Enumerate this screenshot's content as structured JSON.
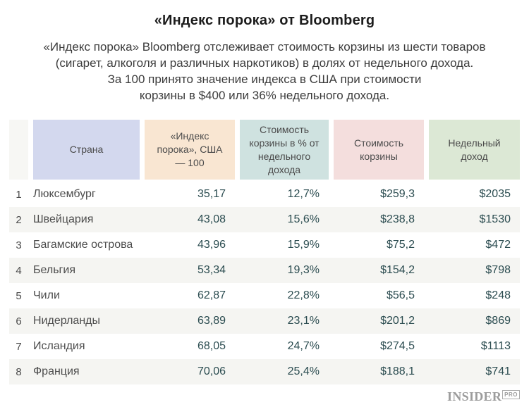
{
  "header": {
    "title": "«Индекс порока» от Bloomberg",
    "subtitle_lines": [
      "«Индекс порока» Bloomberg отслеживает стоимость корзины из шести товаров",
      "(сигарет, алкоголя и различных наркотиков) в долях от недельного дохода.",
      "За 100 принято значение индекса в США при стоимости",
      "корзины в $400 или 36% недельного дохода."
    ]
  },
  "chart_data": {
    "type": "table",
    "title": "«Индекс порока» от Bloomberg",
    "columns": [
      {
        "id": "rank",
        "label": "",
        "header_bg": "#f7f7f4"
      },
      {
        "id": "country",
        "label": "Страна",
        "header_bg": "#d3d8ee"
      },
      {
        "id": "index",
        "label": "«Индекс порока», США — 100",
        "header_bg": "#f9e6d2"
      },
      {
        "id": "pct",
        "label": "Стоимость корзины в % от недельного дохода",
        "header_bg": "#cfe2e0"
      },
      {
        "id": "basket_cost",
        "label": "Стоимость корзины",
        "header_bg": "#f4dedd"
      },
      {
        "id": "weekly_income",
        "label": "Недельный доход",
        "header_bg": "#dce8d5"
      }
    ],
    "rows": [
      {
        "rank": "1",
        "country": "Люксембург",
        "index": "35,17",
        "pct": "12,7%",
        "basket_cost": "$259,3",
        "weekly_income": "$2035"
      },
      {
        "rank": "2",
        "country": "Швейцария",
        "index": "43,08",
        "pct": "15,6%",
        "basket_cost": "$238,8",
        "weekly_income": "$1530"
      },
      {
        "rank": "3",
        "country": "Багамские острова",
        "index": "43,96",
        "pct": "15,9%",
        "basket_cost": "$75,2",
        "weekly_income": "$472"
      },
      {
        "rank": "4",
        "country": "Бельгия",
        "index": "53,34",
        "pct": "19,3%",
        "basket_cost": "$154,2",
        "weekly_income": "$798"
      },
      {
        "rank": "5",
        "country": "Чили",
        "index": "62,87",
        "pct": "22,8%",
        "basket_cost": "$56,5",
        "weekly_income": "$248"
      },
      {
        "rank": "6",
        "country": "Нидерланды",
        "index": "63,89",
        "pct": "23,1%",
        "basket_cost": "$201,2",
        "weekly_income": "$869"
      },
      {
        "rank": "7",
        "country": "Исландия",
        "index": "68,05",
        "pct": "24,7%",
        "basket_cost": "$274,5",
        "weekly_income": "$1113"
      },
      {
        "rank": "8",
        "country": "Франция",
        "index": "70,06",
        "pct": "25,4%",
        "basket_cost": "$188,1",
        "weekly_income": "$741"
      }
    ]
  },
  "footer": {
    "brand": "INSIDER",
    "brand_suffix": "PRO"
  },
  "colors": {
    "row_stripe": "#f5f5f2",
    "value_text": "#2b4c50",
    "label_text": "#4c4c4c",
    "title_text": "#1c1c1c",
    "logo_gray": "#9c9c9c"
  }
}
